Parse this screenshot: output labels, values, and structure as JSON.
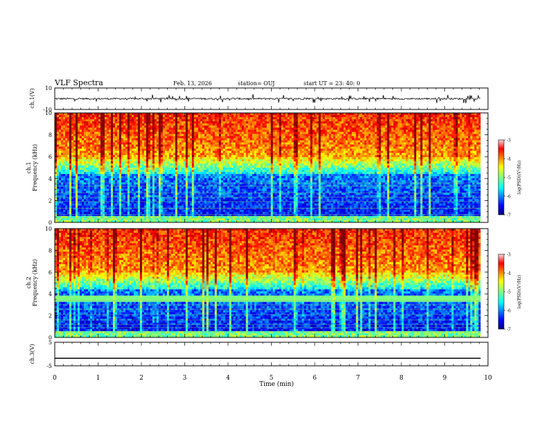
{
  "header": {
    "title": "VLF Spectra",
    "date": "Feb. 13, 2026",
    "station": "station= OUJ",
    "start_ut": "start  UT =  23: 40: 0"
  },
  "chart_data": [
    {
      "id": "ch1-waveform",
      "type": "line",
      "ylabel": "ch.1(V)",
      "ylim": [
        -10,
        10
      ],
      "yticks": [
        10,
        -10
      ],
      "baseline_value": 0,
      "noise_amplitude": 1.5
    },
    {
      "id": "ch1-spectrogram",
      "type": "heatmap",
      "ylabel_line1": "ch.1",
      "ylabel_line2": "Frequency  (kHz)",
      "ylim": [
        0,
        10
      ],
      "yticks": [
        0,
        2,
        4,
        6,
        8,
        10
      ],
      "colorbar": {
        "label": "log(PSD)(V²/Hz)",
        "range": [
          -7,
          -3
        ],
        "ticks": [
          -3,
          -4,
          -5,
          -6,
          -7
        ]
      }
    },
    {
      "id": "ch2-spectrogram",
      "type": "heatmap",
      "ylabel_line1": "ch.2",
      "ylabel_line2": "Frequency  (kHz)",
      "ylim": [
        0,
        10
      ],
      "yticks": [
        0,
        2,
        4,
        6,
        8,
        10
      ],
      "colorbar": {
        "label": "log(PSD)(V²/Hz)",
        "range": [
          -7,
          -3
        ],
        "ticks": [
          -3,
          -4,
          -5,
          -6,
          -7
        ]
      }
    },
    {
      "id": "ch3-waveform",
      "type": "line",
      "ylabel": "ch.3(V)",
      "ylim": [
        -5,
        5
      ],
      "yticks": [
        5,
        -5
      ],
      "baseline_value": -1.8
    }
  ],
  "xaxis": {
    "label": "Time  (min)",
    "xlim": [
      0,
      10
    ],
    "ticks": [
      0,
      1,
      2,
      3,
      4,
      5,
      6,
      7,
      8,
      9,
      10
    ],
    "data_end": 9.83
  },
  "colors": {
    "jet": [
      "#00007f",
      "#0000ff",
      "#007fff",
      "#00ffff",
      "#7fff7f",
      "#ffff00",
      "#ff7f00",
      "#ff0000",
      "#7f0000"
    ],
    "ink": "#000000"
  }
}
